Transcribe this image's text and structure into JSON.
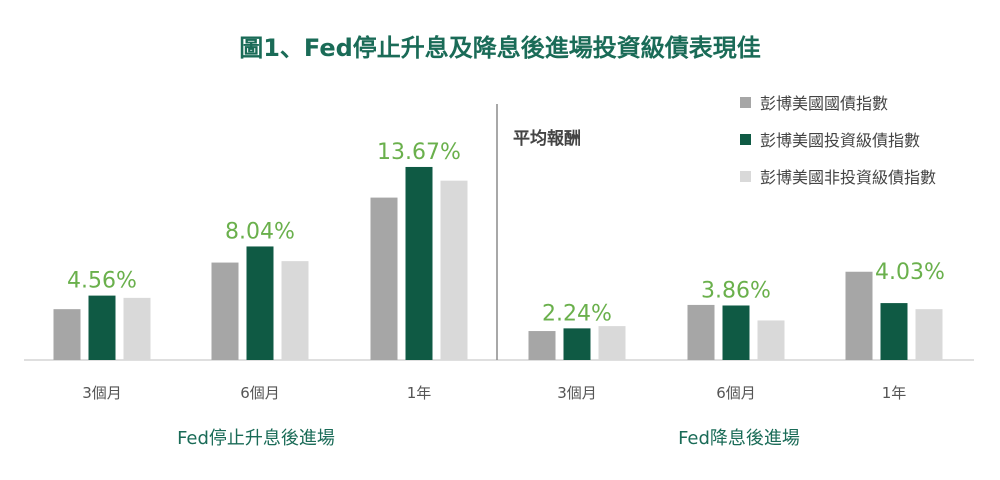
{
  "colors": {
    "gov": "#a6a6a6",
    "ig": "#0f5a44",
    "hy": "#d9d9d9",
    "title": "#1a6b57",
    "value_label": "#6ab04c",
    "axis": "#bfbfbf",
    "divider": "#8c8c8c"
  },
  "chart_data": {
    "type": "bar",
    "title": "圖1、Fed停止升息及降息後進場投資級債表現佳",
    "panel_label": "平均報酬",
    "legend_position": "top-right",
    "grid": false,
    "unit": "%",
    "ylim": [
      0,
      14.8
    ],
    "groups": [
      {
        "name": "Fed停止升息後進場",
        "categories": [
          "3個月",
          "6個月",
          "1年"
        ]
      },
      {
        "name": "Fed降息後進場",
        "categories": [
          "3個月",
          "6個月",
          "1年"
        ]
      }
    ],
    "series": [
      {
        "name": "彭博美國國債指數",
        "color_key": "gov",
        "values": [
          3.6,
          6.9,
          11.5,
          2.05,
          3.9,
          6.25
        ]
      },
      {
        "name": "彭博美國投資級債指數",
        "color_key": "ig",
        "values": [
          4.56,
          8.04,
          13.67,
          2.24,
          3.86,
          4.03
        ]
      },
      {
        "name": "彭博美國非投資級債指數",
        "color_key": "hy",
        "values": [
          4.4,
          7.0,
          12.7,
          2.4,
          2.8,
          3.6
        ]
      }
    ],
    "value_labels": [
      "4.56%",
      "8.04%",
      "13.67%",
      "2.24%",
      "3.86%",
      "4.03%"
    ]
  }
}
